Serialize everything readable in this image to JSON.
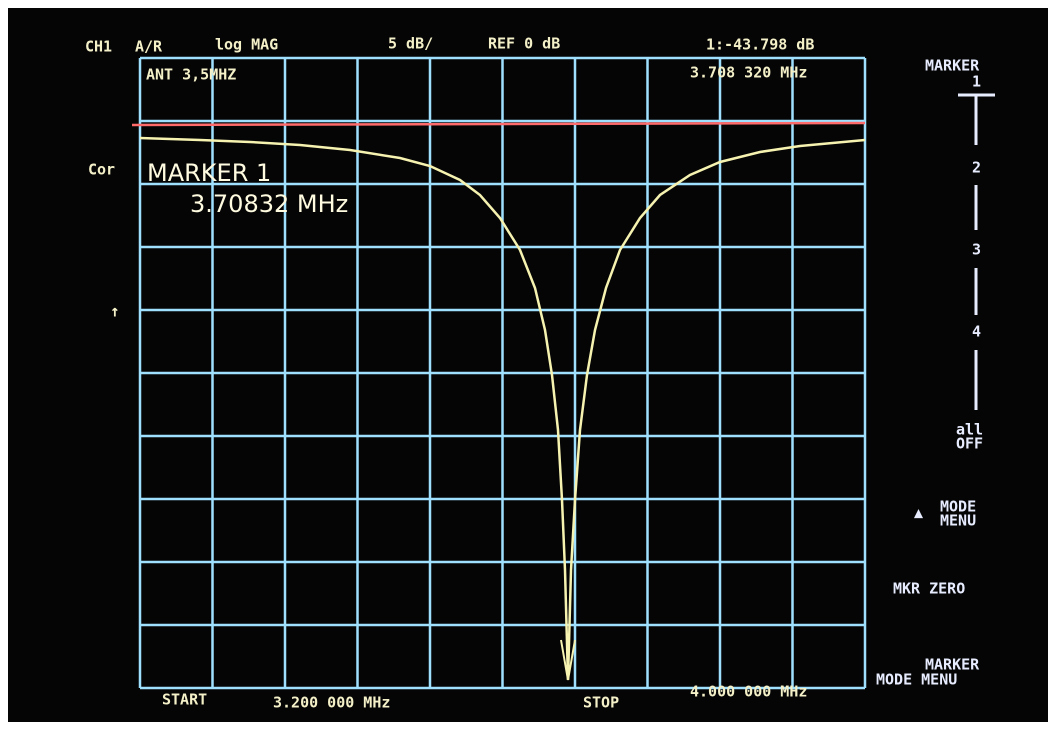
{
  "header": {
    "channel": "CH1",
    "measurement": "A/R",
    "format": "log MAG",
    "scale": "5 dB/",
    "reference": "REF 0 dB",
    "marker_readout": "1:-43.798 dB"
  },
  "trace_title": "ANT 3,5MHZ",
  "marker_frequency": "3.708 320 MHz",
  "status": "Cor",
  "marker_box": {
    "title": "MARKER 1",
    "frequency": "3.70832 MHz"
  },
  "footer": {
    "start_label": "START",
    "start_value": "3.200 000 MHz",
    "stop_label": "STOP",
    "stop_value": "4.000 000 MHz"
  },
  "softkeys": {
    "title": "MARKER",
    "markers": [
      "1",
      "2",
      "3",
      "4"
    ],
    "all_off": [
      "all",
      "OFF"
    ],
    "mode_menu": [
      "MODE",
      "MENU"
    ],
    "marker_zero": "MKR ZERO",
    "marker_mode_menu": [
      "MARKER",
      "MODE MENU"
    ]
  }
}
